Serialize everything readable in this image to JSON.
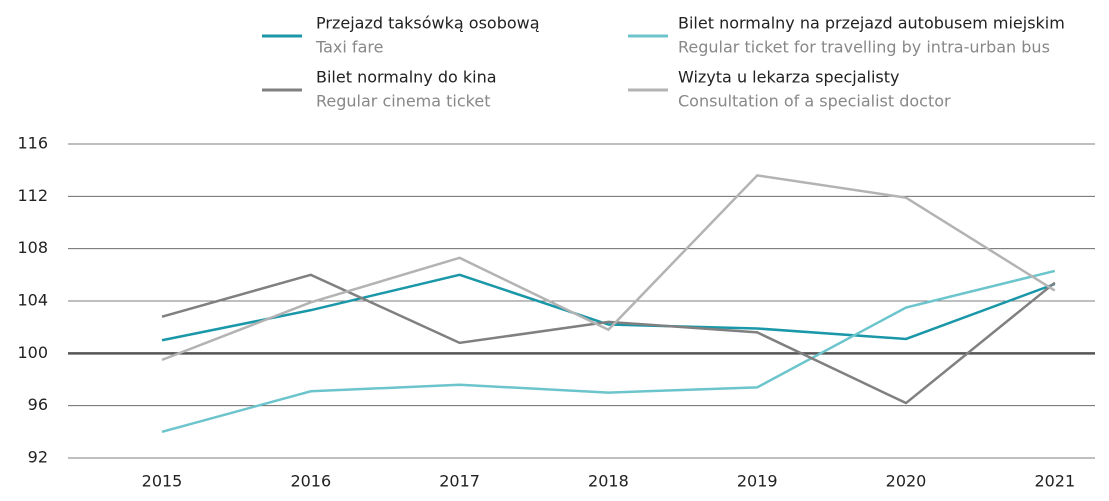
{
  "chart_data": {
    "type": "line",
    "categories": [
      "2015",
      "2016",
      "2017",
      "2018",
      "2019",
      "2020",
      "2021"
    ],
    "series": [
      {
        "name": "Przejazd taksówką osobową",
        "name_en": "Taxi fare",
        "color": "#1a97a8",
        "values": [
          101.0,
          103.3,
          106.0,
          102.2,
          101.9,
          101.1,
          105.3
        ]
      },
      {
        "name": "Bilet normalny na przejazd autobusem miejskim",
        "name_en": "Regular ticket for travelling by intra-urban bus",
        "color": "#6cc5cc",
        "values": [
          94.0,
          97.1,
          97.6,
          97.0,
          97.4,
          103.5,
          106.3
        ]
      },
      {
        "name": "Bilet normalny do kina",
        "name_en": "Regular cinema ticket",
        "color": "#808080",
        "values": [
          102.8,
          106.0,
          100.8,
          102.4,
          101.6,
          96.2,
          105.4
        ]
      },
      {
        "name": "Wizyta u lekarza specjalisty",
        "name_en": "Consultation of a specialist doctor",
        "color": "#b3b3b3",
        "values": [
          99.5,
          103.9,
          107.3,
          101.8,
          113.6,
          111.9,
          104.8
        ]
      }
    ],
    "ylim": [
      92,
      116
    ],
    "yticks": [
      92,
      96,
      100,
      104,
      108,
      112,
      116
    ],
    "baseline": 100,
    "grid": true
  }
}
